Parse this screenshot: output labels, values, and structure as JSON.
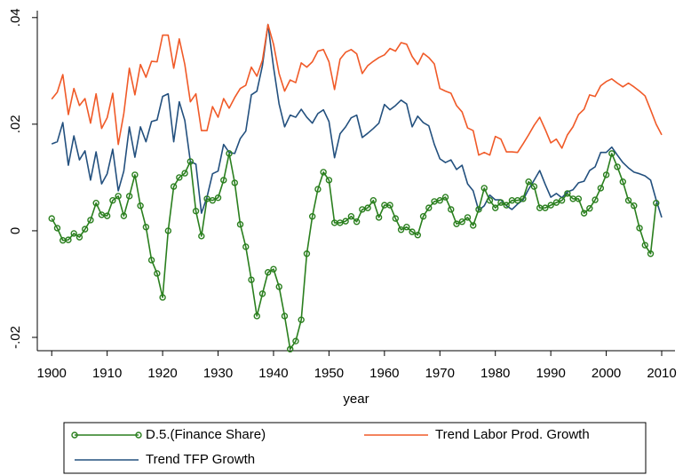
{
  "chart_data": {
    "type": "line",
    "xlabel": "year",
    "x": [
      1900,
      1901,
      1902,
      1903,
      1904,
      1905,
      1906,
      1907,
      1908,
      1909,
      1910,
      1911,
      1912,
      1913,
      1914,
      1915,
      1916,
      1917,
      1918,
      1919,
      1920,
      1921,
      1922,
      1923,
      1924,
      1925,
      1926,
      1927,
      1928,
      1929,
      1930,
      1931,
      1932,
      1933,
      1934,
      1935,
      1936,
      1937,
      1938,
      1939,
      1940,
      1941,
      1942,
      1943,
      1944,
      1945,
      1946,
      1947,
      1948,
      1949,
      1950,
      1951,
      1952,
      1953,
      1954,
      1955,
      1956,
      1957,
      1958,
      1959,
      1960,
      1961,
      1962,
      1963,
      1964,
      1965,
      1966,
      1967,
      1968,
      1969,
      1970,
      1971,
      1972,
      1973,
      1974,
      1975,
      1976,
      1977,
      1978,
      1979,
      1980,
      1981,
      1982,
      1983,
      1984,
      1985,
      1986,
      1987,
      1988,
      1989,
      1990,
      1991,
      1992,
      1993,
      1994,
      1995,
      1996,
      1997,
      1998,
      1999,
      2000,
      2001,
      2002,
      2003,
      2004,
      2005,
      2006,
      2007,
      2008,
      2009,
      2010
    ],
    "series": [
      {
        "name": "D.5.(Finance Share)",
        "color": "#2a7f1e",
        "markers": true,
        "values": [
          0.0023,
          0.0005,
          -0.0018,
          -0.0017,
          -0.0005,
          -0.0012,
          0.0003,
          0.002,
          0.0052,
          0.003,
          0.0028,
          0.0057,
          0.0065,
          0.0028,
          0.0065,
          0.0105,
          0.0047,
          0.0007,
          -0.0055,
          -0.008,
          -0.0125,
          0,
          0.0083,
          0.01,
          0.0108,
          0.013,
          0.0037,
          -0.001,
          0.006,
          0.0057,
          0.0062,
          0.0095,
          0.0145,
          0.009,
          0.0012,
          -0.003,
          -0.0092,
          -0.016,
          -0.0118,
          -0.0078,
          -0.0072,
          -0.0105,
          -0.016,
          -0.0222,
          -0.0207,
          -0.0167,
          -0.0043,
          0.0027,
          0.0078,
          0.011,
          0.0095,
          0.0015,
          0.0015,
          0.0018,
          0.0027,
          0.0017,
          0.004,
          0.0043,
          0.0057,
          0.0025,
          0.0048,
          0.0048,
          0.0023,
          0.0002,
          0.0007,
          -0.0002,
          -0.0008,
          0.0027,
          0.0043,
          0.0055,
          0.0057,
          0.0063,
          0.004,
          0.0013,
          0.0017,
          0.0025,
          0.001,
          0.004,
          0.008,
          0.0057,
          0.0043,
          0.0053,
          0.0048,
          0.0057,
          0.0057,
          0.006,
          0.0092,
          0.0083,
          0.0043,
          0.0043,
          0.0048,
          0.0053,
          0.0057,
          0.007,
          0.006,
          0.006,
          0.0033,
          0.0042,
          0.0058,
          0.008,
          0.0105,
          0.0145,
          0.012,
          0.0092,
          0.0057,
          0.0047,
          0.0005,
          -0.0027,
          -0.0043,
          0.0052,
          null
        ]
      },
      {
        "name": "Trend Labor Prod. Growth",
        "color": "#f05a28",
        "markers": false,
        "values": [
          0.0247,
          0.026,
          0.0293,
          0.0218,
          0.0267,
          0.0235,
          0.0248,
          0.0202,
          0.0257,
          0.0192,
          0.0212,
          0.0258,
          0.0162,
          0.022,
          0.0305,
          0.0255,
          0.0312,
          0.0288,
          0.0318,
          0.0317,
          0.0367,
          0.0367,
          0.0305,
          0.036,
          0.0312,
          0.0242,
          0.0257,
          0.0188,
          0.0188,
          0.0233,
          0.0213,
          0.0248,
          0.023,
          0.025,
          0.0267,
          0.0273,
          0.0307,
          0.029,
          0.032,
          0.0387,
          0.035,
          0.0295,
          0.0262,
          0.0283,
          0.0278,
          0.0315,
          0.0307,
          0.0317,
          0.0337,
          0.034,
          0.0317,
          0.0265,
          0.0322,
          0.0335,
          0.034,
          0.0332,
          0.0295,
          0.031,
          0.0318,
          0.0325,
          0.033,
          0.0342,
          0.0337,
          0.0353,
          0.035,
          0.0327,
          0.0312,
          0.0333,
          0.0325,
          0.0313,
          0.0267,
          0.0262,
          0.0258,
          0.0235,
          0.0223,
          0.0193,
          0.0188,
          0.0142,
          0.0147,
          0.0142,
          0.0177,
          0.0172,
          0.0148,
          0.0148,
          0.0147,
          0.0163,
          0.018,
          0.0198,
          0.0213,
          0.019,
          0.0165,
          0.0172,
          0.0155,
          0.018,
          0.0195,
          0.0218,
          0.0228,
          0.0255,
          0.0252,
          0.0272,
          0.028,
          0.0285,
          0.0277,
          0.027,
          0.0277,
          0.027,
          0.0262,
          0.0253,
          0.0227,
          0.02,
          0.018
        ]
      },
      {
        "name": "Trend TFP Growth",
        "color": "#23507e",
        "markers": false,
        "values": [
          0.0163,
          0.0167,
          0.0203,
          0.0123,
          0.0178,
          0.0133,
          0.015,
          0.0095,
          0.0148,
          0.0088,
          0.0107,
          0.0153,
          0.0075,
          0.0112,
          0.0195,
          0.0138,
          0.0195,
          0.0167,
          0.0205,
          0.0208,
          0.0252,
          0.0257,
          0.0167,
          0.0242,
          0.0207,
          0.013,
          0.0125,
          0.0033,
          0.0063,
          0.0107,
          0.0112,
          0.0162,
          0.0147,
          0.0145,
          0.0173,
          0.0187,
          0.0255,
          0.0262,
          0.031,
          0.0387,
          0.0307,
          0.0238,
          0.0195,
          0.0217,
          0.0213,
          0.0228,
          0.0213,
          0.0202,
          0.022,
          0.0227,
          0.0205,
          0.0137,
          0.0182,
          0.0195,
          0.0212,
          0.0217,
          0.0175,
          0.0183,
          0.0192,
          0.0202,
          0.0237,
          0.0227,
          0.0235,
          0.0245,
          0.0238,
          0.0195,
          0.0215,
          0.0203,
          0.0197,
          0.0162,
          0.0135,
          0.0128,
          0.0133,
          0.0115,
          0.0123,
          0.0088,
          0.0075,
          0.0038,
          0.0047,
          0.0067,
          0.0058,
          0.0058,
          0.0047,
          0.004,
          0.005,
          0.0058,
          0.0078,
          0.0095,
          0.0113,
          0.0087,
          0.0063,
          0.007,
          0.0062,
          0.0073,
          0.0077,
          0.009,
          0.0093,
          0.0113,
          0.012,
          0.0147,
          0.0147,
          0.0157,
          0.0142,
          0.0128,
          0.0118,
          0.011,
          0.0107,
          0.0103,
          0.0095,
          0.0058,
          0.0025
        ]
      }
    ],
    "xlim": [
      1897.4,
      2012.4
    ],
    "xticks": [
      1900,
      1910,
      1920,
      1930,
      1940,
      1950,
      1960,
      1970,
      1980,
      1990,
      2000,
      2010
    ],
    "ylim": [
      -0.0225,
      0.0413
    ],
    "yticks": [
      {
        "value": -0.02,
        "label": "-.02"
      },
      0,
      {
        "value": 0.02,
        "label": ".02"
      },
      {
        "value": 0.04,
        "label": ".04"
      }
    ],
    "grid": false,
    "legend": "bottom"
  }
}
